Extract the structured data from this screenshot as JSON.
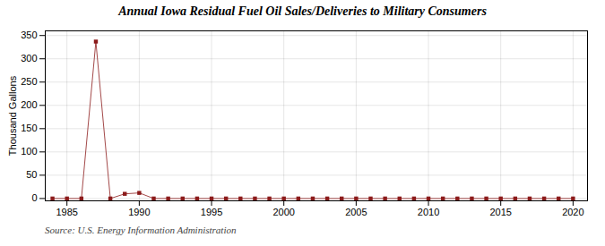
{
  "chart_data": {
    "type": "line",
    "title": "Annual Iowa Residual Fuel Oil Sales/Deliveries to Military Consumers",
    "ylabel": "Thousand Gallons",
    "source": "Source: U.S. Energy Information Administration",
    "x": [
      1984,
      1985,
      1986,
      1987,
      1988,
      1989,
      1990,
      1991,
      1992,
      1993,
      1994,
      1995,
      1996,
      1997,
      1998,
      1999,
      2000,
      2001,
      2002,
      2003,
      2004,
      2005,
      2006,
      2007,
      2008,
      2009,
      2010,
      2011,
      2012,
      2013,
      2014,
      2015,
      2016,
      2017,
      2018,
      2019,
      2020
    ],
    "values": [
      0,
      0,
      0,
      337,
      0,
      10,
      12,
      0,
      0,
      0,
      0,
      0,
      0,
      0,
      0,
      0,
      0,
      0,
      0,
      0,
      0,
      0,
      0,
      0,
      0,
      0,
      0,
      0,
      0,
      0,
      0,
      0,
      0,
      0,
      0,
      0,
      0
    ],
    "color": "#8b1a1a",
    "marker": "square",
    "line_style": "solid",
    "xlim": [
      1983.5,
      2021
    ],
    "xticks": [
      1985,
      1990,
      1995,
      2000,
      2005,
      2010,
      2015,
      2020
    ],
    "ylim": [
      -5,
      360
    ],
    "yticks": [
      0,
      50,
      100,
      150,
      200,
      250,
      300,
      350
    ],
    "grid": true
  }
}
